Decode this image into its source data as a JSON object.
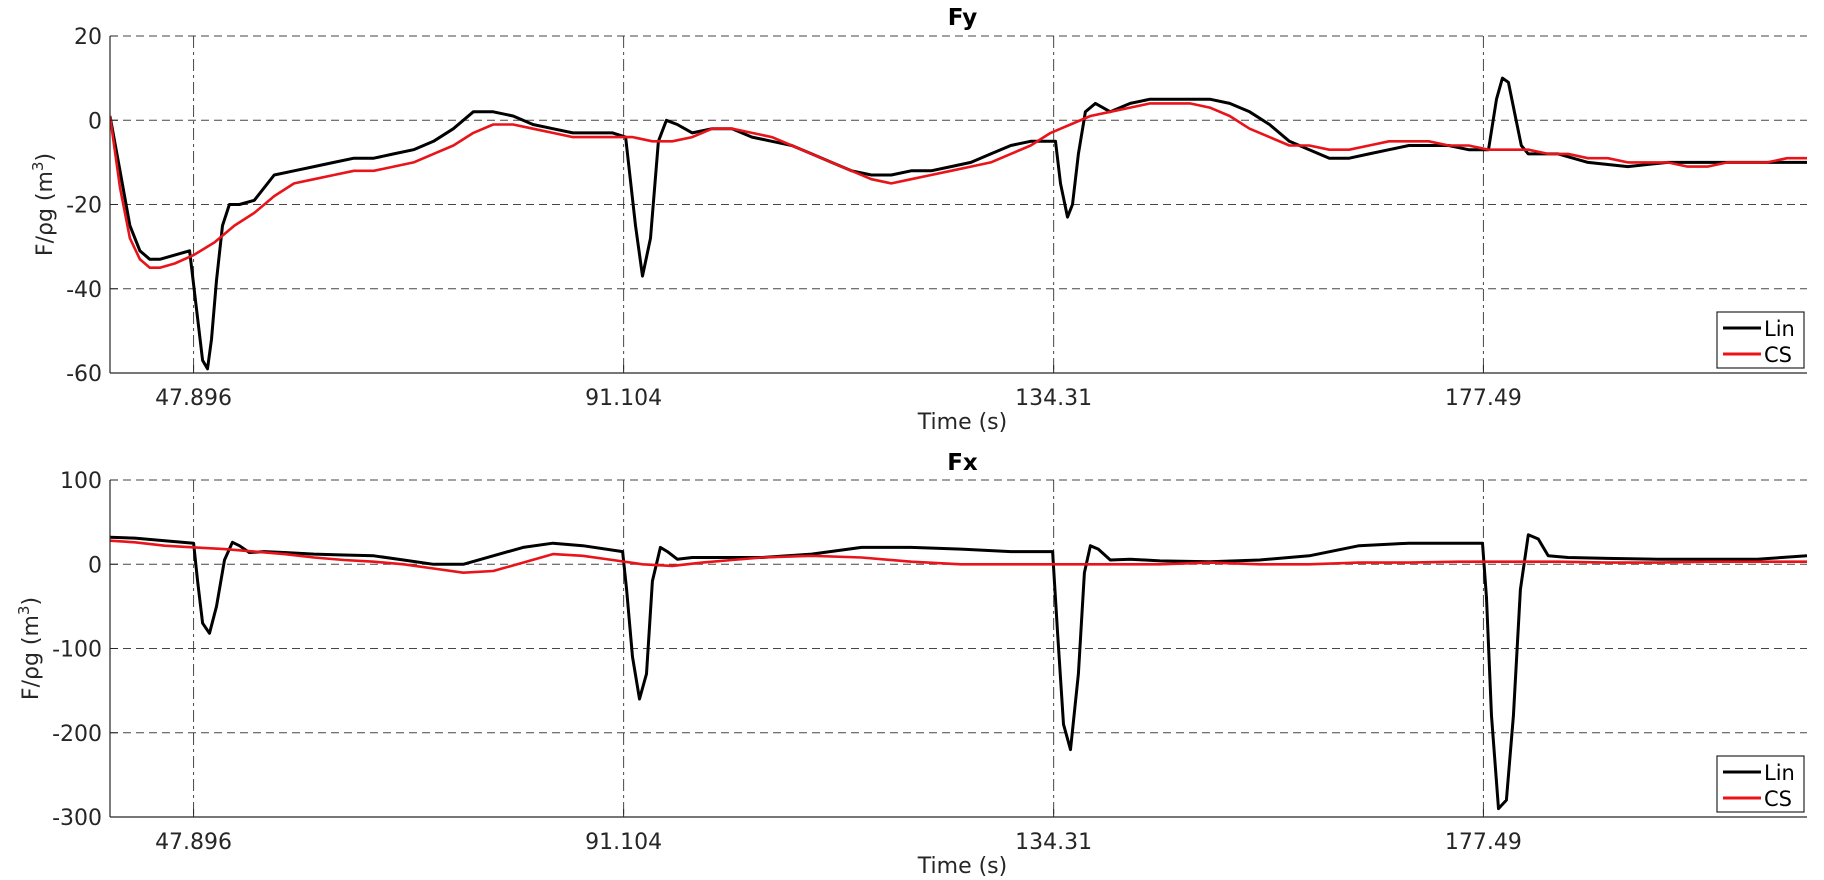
{
  "chart_data": [
    {
      "type": "line",
      "title": "Fy",
      "xlabel": "Time (s)",
      "ylabel": "F/ρg (m",
      "ylabel_sup": "3",
      "ylabel_close": ")",
      "xlim": [
        39.5,
        210
      ],
      "ylim": [
        -60,
        20
      ],
      "xticks": [
        47.896,
        91.104,
        134.31,
        177.49
      ],
      "xtick_labels": [
        "47.896",
        "91.104",
        "134.31",
        "177.49"
      ],
      "yticks": [
        20,
        0,
        -20,
        -40,
        -60
      ],
      "ytick_labels": [
        "20",
        "0",
        "-20",
        "-40",
        "-60"
      ],
      "grid": true,
      "legend_position": "bottom-right",
      "series": [
        {
          "name": "Lin",
          "color": "#000000",
          "x": [
            39.5,
            40.5,
            41.5,
            42.5,
            43.5,
            44.5,
            46,
            47.5,
            48.2,
            48.8,
            49.3,
            49.7,
            50.2,
            50.8,
            51.5,
            52.5,
            54,
            56,
            58,
            60,
            62,
            64,
            66,
            68,
            70,
            72,
            74,
            76,
            78,
            80,
            82,
            84,
            86,
            88,
            90,
            91.3,
            92.3,
            93,
            93.8,
            94.6,
            95.4,
            96.5,
            98,
            100,
            102,
            104,
            106,
            108,
            110,
            112,
            114,
            116,
            118,
            120,
            122,
            124,
            126,
            128,
            130,
            132,
            134.5,
            135,
            135.7,
            136.2,
            136.8,
            137.5,
            138.5,
            140,
            142,
            144,
            146,
            148,
            150,
            152,
            154,
            156,
            158,
            160,
            162,
            164,
            166,
            168,
            170,
            172,
            174,
            176,
            178,
            178.8,
            179.4,
            180,
            180.6,
            181.3,
            182,
            183.5,
            185,
            188,
            192,
            196,
            200,
            204,
            208,
            210
          ],
          "y": [
            1,
            -12,
            -25,
            -31,
            -33,
            -33,
            -32,
            -31,
            -45,
            -57,
            -59,
            -52,
            -38,
            -25,
            -20,
            -20,
            -19,
            -13,
            -12,
            -11,
            -10,
            -9,
            -9,
            -8,
            -7,
            -5,
            -2,
            2,
            2,
            1,
            -1,
            -2,
            -3,
            -3,
            -3,
            -4,
            -25,
            -37,
            -28,
            -5,
            0,
            -1,
            -3,
            -2,
            -2,
            -4,
            -5,
            -6,
            -8,
            -10,
            -12,
            -13,
            -13,
            -12,
            -12,
            -11,
            -10,
            -8,
            -6,
            -5,
            -5,
            -15,
            -23,
            -20,
            -8,
            2,
            4,
            2,
            4,
            5,
            5,
            5,
            5,
            4,
            2,
            -1,
            -5,
            -7,
            -9,
            -9,
            -8,
            -7,
            -6,
            -6,
            -6,
            -7,
            -7,
            5,
            10,
            9,
            2,
            -6,
            -8,
            -8,
            -8,
            -10,
            -11,
            -10,
            -10,
            -10,
            -10,
            -10
          ]
        },
        {
          "name": "CS",
          "color": "#e8141a",
          "x": [
            39.5,
            40.5,
            41.5,
            42.5,
            43.5,
            44.5,
            46,
            47.9,
            50,
            52,
            54,
            56,
            58,
            60,
            62,
            64,
            66,
            68,
            70,
            72,
            74,
            76,
            78,
            80,
            82,
            84,
            86,
            88,
            90,
            92,
            94,
            96,
            98,
            100,
            102,
            104,
            106,
            108,
            110,
            112,
            114,
            116,
            118,
            120,
            122,
            124,
            126,
            128,
            130,
            132,
            134,
            136,
            138,
            140,
            142,
            144,
            146,
            148,
            150,
            152,
            154,
            156,
            158,
            160,
            162,
            164,
            166,
            168,
            170,
            172,
            174,
            176,
            178,
            180,
            182,
            184,
            186,
            188,
            190,
            192,
            194,
            196,
            198,
            200,
            202,
            204,
            206,
            208,
            210
          ],
          "y": [
            1,
            -16,
            -28,
            -33,
            -35,
            -35,
            -34,
            -32,
            -29,
            -25,
            -22,
            -18,
            -15,
            -14,
            -13,
            -12,
            -12,
            -11,
            -10,
            -8,
            -6,
            -3,
            -1,
            -1,
            -2,
            -3,
            -4,
            -4,
            -4,
            -4,
            -5,
            -5,
            -4,
            -2,
            -2,
            -3,
            -4,
            -6,
            -8,
            -10,
            -12,
            -14,
            -15,
            -14,
            -13,
            -12,
            -11,
            -10,
            -8,
            -6,
            -3,
            -1,
            1,
            2,
            3,
            4,
            4,
            4,
            3,
            1,
            -2,
            -4,
            -6,
            -6,
            -7,
            -7,
            -6,
            -5,
            -5,
            -5,
            -6,
            -6,
            -7,
            -7,
            -7,
            -8,
            -8,
            -9,
            -9,
            -10,
            -10,
            -10,
            -11,
            -11,
            -10,
            -10,
            -10,
            -9,
            -9
          ]
        }
      ]
    },
    {
      "type": "line",
      "title": "Fx",
      "xlabel": "Time (s)",
      "ylabel": "F/ρg (m",
      "ylabel_sup": "3",
      "ylabel_close": ")",
      "xlim": [
        39.5,
        210
      ],
      "ylim": [
        -300,
        100
      ],
      "xticks": [
        47.896,
        91.104,
        134.31,
        177.49
      ],
      "xtick_labels": [
        "47.896",
        "91.104",
        "134.31",
        "177.49"
      ],
      "yticks": [
        100,
        0,
        -100,
        -200,
        -300
      ],
      "ytick_labels": [
        "100",
        "0",
        "-100",
        "-200",
        "-300"
      ],
      "grid": true,
      "legend_position": "bottom-right",
      "series": [
        {
          "name": "Lin",
          "color": "#000000",
          "x": [
            39.5,
            42,
            45,
            47.9,
            48.3,
            48.8,
            49.5,
            50.2,
            51,
            51.8,
            52.5,
            53.5,
            55,
            57,
            60,
            63,
            66,
            69,
            72,
            75,
            78,
            81,
            84,
            87,
            91,
            91.4,
            92,
            92.7,
            93.4,
            94,
            94.8,
            95.5,
            96.5,
            98,
            101,
            105,
            110,
            115,
            120,
            125,
            130,
            134.2,
            134.7,
            135.3,
            136,
            136.8,
            137.4,
            138,
            138.8,
            140,
            142,
            145,
            150,
            155,
            160,
            165,
            170,
            175,
            177.4,
            177.8,
            178.3,
            179,
            179.8,
            180.5,
            181.2,
            182,
            183,
            184,
            186,
            190,
            195,
            200,
            205,
            210
          ],
          "y": [
            32,
            31,
            28,
            25,
            -20,
            -70,
            -82,
            -50,
            5,
            26,
            22,
            14,
            15,
            14,
            12,
            11,
            10,
            5,
            0,
            0,
            10,
            20,
            25,
            22,
            15,
            -30,
            -110,
            -160,
            -130,
            -20,
            20,
            15,
            6,
            8,
            8,
            8,
            12,
            20,
            20,
            18,
            15,
            15,
            -80,
            -190,
            -220,
            -130,
            -10,
            22,
            18,
            5,
            6,
            4,
            3,
            5,
            10,
            22,
            25,
            25,
            25,
            -40,
            -180,
            -290,
            -280,
            -180,
            -30,
            35,
            30,
            10,
            8,
            7,
            6,
            6,
            6,
            10
          ]
        },
        {
          "name": "CS",
          "color": "#e8141a",
          "x": [
            39.5,
            42,
            45,
            48,
            51,
            54,
            57,
            60,
            63,
            66,
            69,
            72,
            75,
            78,
            81,
            84,
            87,
            90,
            93,
            96,
            99,
            102,
            105,
            110,
            115,
            120,
            125,
            130,
            135,
            140,
            145,
            150,
            155,
            160,
            165,
            170,
            175,
            180,
            185,
            190,
            195,
            200,
            205,
            210
          ],
          "y": [
            28,
            26,
            22,
            20,
            18,
            15,
            12,
            8,
            5,
            3,
            0,
            -5,
            -10,
            -8,
            2,
            12,
            10,
            5,
            0,
            -2,
            2,
            5,
            8,
            10,
            8,
            3,
            0,
            0,
            0,
            0,
            0,
            2,
            0,
            0,
            2,
            2,
            3,
            3,
            3,
            2,
            2,
            3,
            3,
            3
          ]
        }
      ]
    }
  ]
}
